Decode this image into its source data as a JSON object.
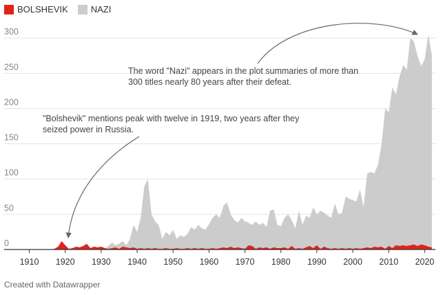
{
  "chart_data": {
    "type": "area",
    "legend_position": "top-left",
    "series": [
      {
        "name": "BOLSHEVIK",
        "color": "#e2231a",
        "points": [
          [
            1903,
            0
          ],
          [
            1916,
            0
          ],
          [
            1917,
            1
          ],
          [
            1918,
            4
          ],
          [
            1919,
            12
          ],
          [
            1920,
            6
          ],
          [
            1921,
            1
          ],
          [
            1922,
            2
          ],
          [
            1923,
            4
          ],
          [
            1924,
            3
          ],
          [
            1925,
            5
          ],
          [
            1926,
            8
          ],
          [
            1927,
            2
          ],
          [
            1928,
            4
          ],
          [
            1929,
            3
          ],
          [
            1930,
            4
          ],
          [
            1931,
            2
          ],
          [
            1932,
            1
          ],
          [
            1933,
            2
          ],
          [
            1934,
            3
          ],
          [
            1935,
            1
          ],
          [
            1936,
            4
          ],
          [
            1937,
            3
          ],
          [
            1938,
            2
          ],
          [
            1939,
            3
          ],
          [
            1940,
            1
          ],
          [
            1941,
            2
          ],
          [
            1942,
            1
          ],
          [
            1943,
            2
          ],
          [
            1944,
            1
          ],
          [
            1945,
            2
          ],
          [
            1946,
            1
          ],
          [
            1947,
            1
          ],
          [
            1948,
            2
          ],
          [
            1949,
            1
          ],
          [
            1950,
            1
          ],
          [
            1951,
            2
          ],
          [
            1952,
            1
          ],
          [
            1953,
            1
          ],
          [
            1954,
            2
          ],
          [
            1955,
            1
          ],
          [
            1956,
            2
          ],
          [
            1957,
            1
          ],
          [
            1958,
            2
          ],
          [
            1959,
            1
          ],
          [
            1960,
            1
          ],
          [
            1961,
            2
          ],
          [
            1962,
            1
          ],
          [
            1963,
            2
          ],
          [
            1964,
            3
          ],
          [
            1965,
            2
          ],
          [
            1966,
            4
          ],
          [
            1967,
            2
          ],
          [
            1968,
            3
          ],
          [
            1969,
            2
          ],
          [
            1970,
            1
          ],
          [
            1971,
            6
          ],
          [
            1972,
            5
          ],
          [
            1973,
            1
          ],
          [
            1974,
            3
          ],
          [
            1975,
            2
          ],
          [
            1976,
            3
          ],
          [
            1977,
            1
          ],
          [
            1978,
            3
          ],
          [
            1979,
            2
          ],
          [
            1980,
            2
          ],
          [
            1981,
            3
          ],
          [
            1982,
            1
          ],
          [
            1983,
            5
          ],
          [
            1984,
            1
          ],
          [
            1985,
            2
          ],
          [
            1986,
            1
          ],
          [
            1987,
            3
          ],
          [
            1988,
            5
          ],
          [
            1989,
            2
          ],
          [
            1990,
            6
          ],
          [
            1991,
            1
          ],
          [
            1992,
            4
          ],
          [
            1993,
            2
          ],
          [
            1994,
            1
          ],
          [
            1995,
            2
          ],
          [
            1996,
            1
          ],
          [
            1997,
            2
          ],
          [
            1998,
            1
          ],
          [
            1999,
            2
          ],
          [
            2000,
            1
          ],
          [
            2001,
            2
          ],
          [
            2002,
            1
          ],
          [
            2003,
            2
          ],
          [
            2004,
            3
          ],
          [
            2005,
            2
          ],
          [
            2006,
            4
          ],
          [
            2007,
            3
          ],
          [
            2008,
            4
          ],
          [
            2009,
            1
          ],
          [
            2010,
            5
          ],
          [
            2011,
            2
          ],
          [
            2012,
            6
          ],
          [
            2013,
            5
          ],
          [
            2014,
            6
          ],
          [
            2015,
            5
          ],
          [
            2016,
            6
          ],
          [
            2017,
            7
          ],
          [
            2018,
            5
          ],
          [
            2019,
            7
          ],
          [
            2020,
            6
          ],
          [
            2021,
            4
          ],
          [
            2022,
            3
          ]
        ]
      },
      {
        "name": "NAZI",
        "color": "#cccccc",
        "points": [
          [
            1903,
            0
          ],
          [
            1925,
            0
          ],
          [
            1926,
            1
          ],
          [
            1927,
            0
          ],
          [
            1928,
            1
          ],
          [
            1929,
            0
          ],
          [
            1930,
            2
          ],
          [
            1931,
            1
          ],
          [
            1932,
            5
          ],
          [
            1933,
            10
          ],
          [
            1934,
            6
          ],
          [
            1935,
            8
          ],
          [
            1936,
            12
          ],
          [
            1937,
            6
          ],
          [
            1938,
            15
          ],
          [
            1939,
            35
          ],
          [
            1940,
            25
          ],
          [
            1941,
            45
          ],
          [
            1942,
            90
          ],
          [
            1943,
            100
          ],
          [
            1944,
            50
          ],
          [
            1945,
            40
          ],
          [
            1946,
            35
          ],
          [
            1947,
            15
          ],
          [
            1948,
            25
          ],
          [
            1949,
            20
          ],
          [
            1950,
            28
          ],
          [
            1951,
            15
          ],
          [
            1952,
            20
          ],
          [
            1953,
            18
          ],
          [
            1954,
            22
          ],
          [
            1955,
            32
          ],
          [
            1956,
            28
          ],
          [
            1957,
            35
          ],
          [
            1958,
            30
          ],
          [
            1959,
            28
          ],
          [
            1960,
            36
          ],
          [
            1961,
            45
          ],
          [
            1962,
            50
          ],
          [
            1963,
            45
          ],
          [
            1964,
            62
          ],
          [
            1965,
            67
          ],
          [
            1966,
            50
          ],
          [
            1967,
            42
          ],
          [
            1968,
            38
          ],
          [
            1969,
            45
          ],
          [
            1970,
            40
          ],
          [
            1971,
            38
          ],
          [
            1972,
            35
          ],
          [
            1973,
            40
          ],
          [
            1974,
            35
          ],
          [
            1975,
            38
          ],
          [
            1976,
            32
          ],
          [
            1977,
            55
          ],
          [
            1978,
            57
          ],
          [
            1979,
            35
          ],
          [
            1980,
            33
          ],
          [
            1981,
            45
          ],
          [
            1982,
            50
          ],
          [
            1983,
            42
          ],
          [
            1984,
            30
          ],
          [
            1985,
            55
          ],
          [
            1986,
            35
          ],
          [
            1987,
            48
          ],
          [
            1988,
            45
          ],
          [
            1989,
            60
          ],
          [
            1990,
            50
          ],
          [
            1991,
            55
          ],
          [
            1992,
            52
          ],
          [
            1993,
            48
          ],
          [
            1994,
            45
          ],
          [
            1995,
            65
          ],
          [
            1996,
            50
          ],
          [
            1997,
            52
          ],
          [
            1998,
            75
          ],
          [
            1999,
            72
          ],
          [
            2000,
            70
          ],
          [
            2001,
            68
          ],
          [
            2002,
            85
          ],
          [
            2003,
            60
          ],
          [
            2004,
            108
          ],
          [
            2005,
            110
          ],
          [
            2006,
            108
          ],
          [
            2007,
            120
          ],
          [
            2008,
            150
          ],
          [
            2009,
            200
          ],
          [
            2010,
            195
          ],
          [
            2011,
            230
          ],
          [
            2012,
            220
          ],
          [
            2013,
            245
          ],
          [
            2014,
            262
          ],
          [
            2015,
            255
          ],
          [
            2016,
            300
          ],
          [
            2017,
            295
          ],
          [
            2018,
            275
          ],
          [
            2019,
            260
          ],
          [
            2020,
            270
          ],
          [
            2021,
            305
          ],
          [
            2022,
            275
          ]
        ]
      }
    ],
    "xlim": [
      1903,
      2023
    ],
    "ylim": [
      0,
      310
    ],
    "x_ticks": [
      1910,
      1920,
      1930,
      1940,
      1950,
      1960,
      1970,
      1980,
      1990,
      2000,
      2010,
      2020
    ],
    "y_ticks": [
      0,
      50,
      100,
      150,
      200,
      250,
      300
    ],
    "grid": true,
    "annotations": [
      {
        "name": "nazi-annotation",
        "lines": [
          "The word \"Nazi\" appears in the plot summaries of more than",
          "300 titles nearly 80 years after their defeat."
        ]
      },
      {
        "name": "bolshevik-annotation",
        "lines": [
          "\"Bolshevik\" mentions peak with twelve in 1919, two years after they",
          "seized power in Russia."
        ]
      }
    ],
    "footer": "Created with Datawrapper"
  }
}
